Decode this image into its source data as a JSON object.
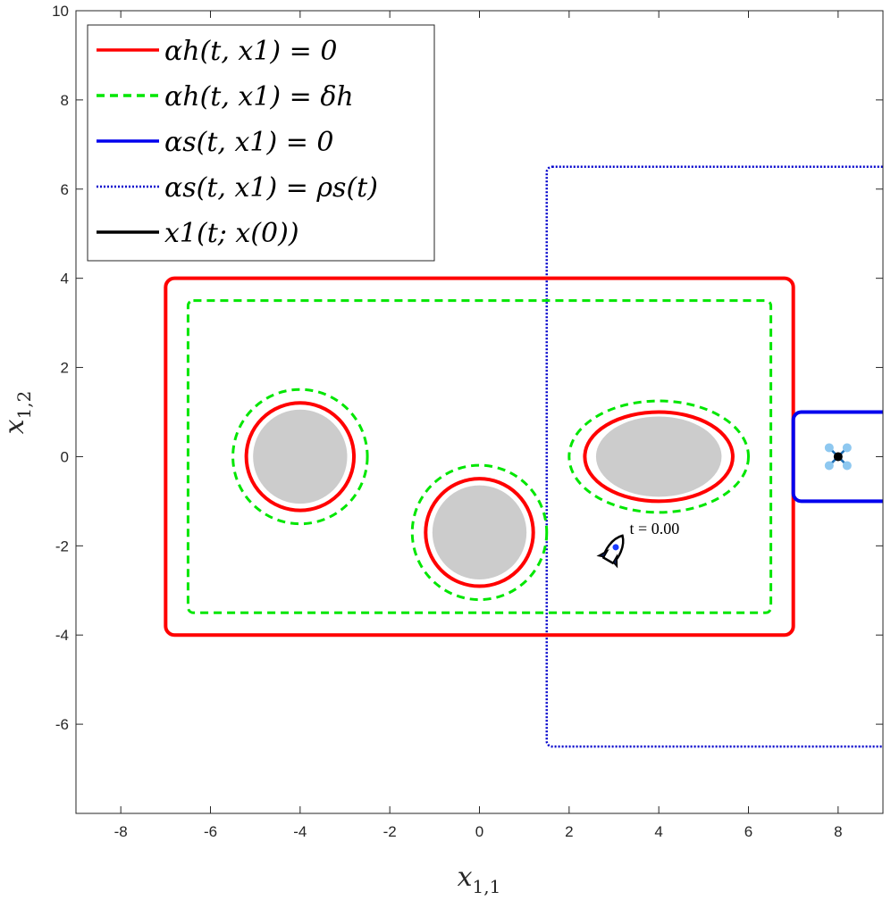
{
  "chart_data": {
    "type": "line",
    "xlim": [
      -9,
      9
    ],
    "ylim": [
      -8,
      10
    ],
    "x_ticks": [
      -8,
      -6,
      -4,
      -2,
      0,
      2,
      4,
      6,
      8
    ],
    "y_ticks": [
      -6,
      -4,
      -2,
      0,
      2,
      4,
      6,
      8,
      10
    ],
    "x_tick_labels": [
      "-8",
      "-6",
      "-4",
      "-2",
      "0",
      "2",
      "4",
      "6",
      "8"
    ],
    "y_tick_labels": [
      "-6",
      "-4",
      "-2",
      "0",
      "2",
      "4",
      "6",
      "8",
      "10"
    ],
    "xlabel": "x",
    "xlabel_sub": "1,1",
    "ylabel": "x",
    "ylabel_sub": "1,2",
    "grid": false,
    "legend_position": "top-left",
    "colors": {
      "hard_boundary": "#ff0000",
      "hard_margin": "#00e600",
      "soft_boundary": "#0000ee",
      "soft_level": "#0000cc",
      "trajectory": "#000000",
      "obstacle_fill": "#cccccc",
      "goal_marker": "#8ec8f0"
    },
    "legend": [
      {
        "label": "αh(t, x1) = 0",
        "style": "solid",
        "color": "#ff0000"
      },
      {
        "label": "αh(t, x1) = δh",
        "style": "dashed",
        "color": "#00e600"
      },
      {
        "label": "αs(t, x1) = 0",
        "style": "solid",
        "color": "#0000ee"
      },
      {
        "label": "αs(t, x1) = ρs(t)",
        "style": "dotted",
        "color": "#0000cc"
      },
      {
        "label": "x1(t; x(0))",
        "style": "solid",
        "color": "#000000"
      }
    ],
    "workspace_boundary": {
      "x_range": [
        -7,
        7
      ],
      "y_range": [
        -4,
        4
      ],
      "margin_x_range": [
        -6.5,
        6.5
      ],
      "margin_y_range": [
        -3.5,
        3.5
      ]
    },
    "obstacles": [
      {
        "shape": "circle",
        "center": [
          -4,
          0
        ],
        "radius": 1.05,
        "boundary_radius": 1.2,
        "margin_radius": 1.5
      },
      {
        "shape": "circle",
        "center": [
          0,
          -1.7
        ],
        "radius": 1.05,
        "boundary_radius": 1.2,
        "margin_radius": 1.5
      },
      {
        "shape": "ellipse",
        "center": [
          4,
          0
        ],
        "rx": 1.4,
        "ry": 0.9,
        "boundary_rx": 1.65,
        "boundary_ry": 1.0,
        "margin_rx": 2.0,
        "margin_ry": 1.25
      }
    ],
    "goal_region": {
      "x_range": [
        7,
        10.1
      ],
      "y_range": [
        -1,
        1
      ],
      "center": [
        8,
        0
      ]
    },
    "soft_level_set": {
      "x_range": [
        1.5,
        9
      ],
      "y_range": [
        -6.5,
        6.5
      ]
    },
    "robot": {
      "position": [
        3,
        -2.1
      ],
      "heading_deg": 60
    },
    "annotation": {
      "text": "t = 0.00",
      "position": [
        3.35,
        -1.65
      ]
    }
  }
}
